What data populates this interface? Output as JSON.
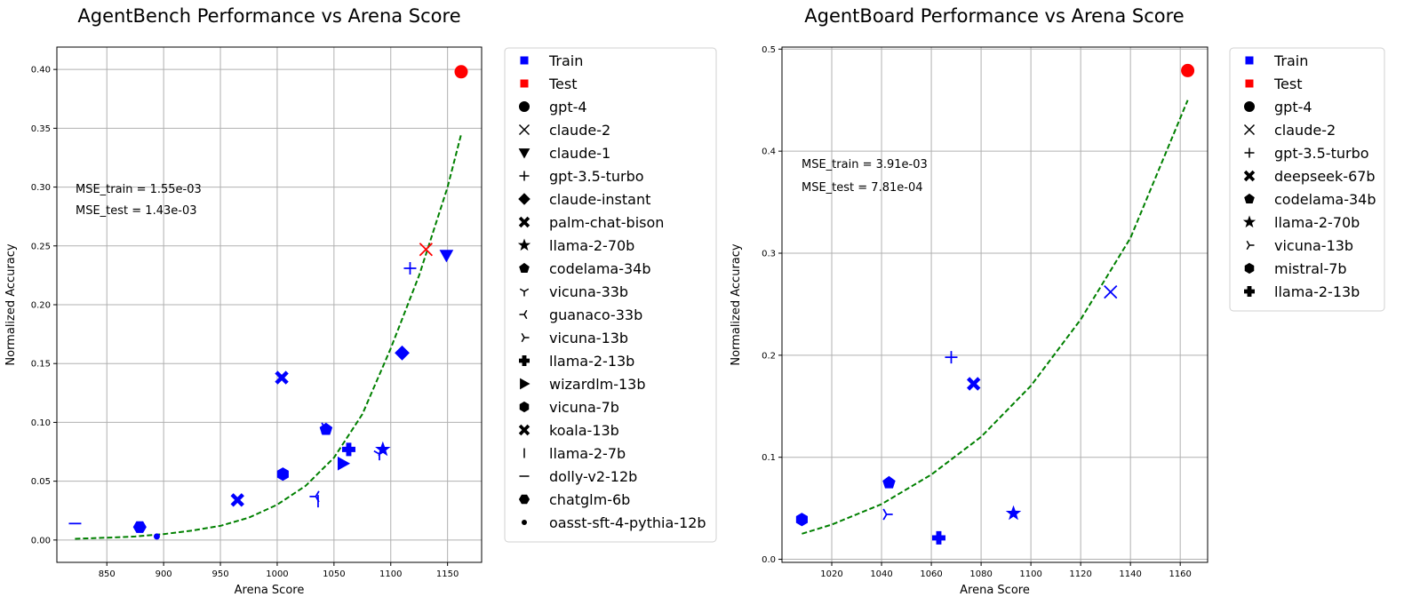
{
  "chart_data": [
    {
      "type": "scatter",
      "title": "AgentBench Performance vs Arena Score",
      "xlabel": "Arena Score",
      "ylabel": "Normalized Accuracy",
      "xlim": [
        806,
        1180
      ],
      "ylim": [
        -0.019,
        0.419
      ],
      "xticks": [
        "850",
        "900",
        "950",
        "1000",
        "1050",
        "1100",
        "1150"
      ],
      "yticks": [
        "0.00",
        "0.05",
        "0.10",
        "0.15",
        "0.20",
        "0.25",
        "0.30",
        "0.35",
        "0.40"
      ],
      "grid": true,
      "legend_position": "outside-right",
      "annotations": [
        "MSE_train = 1.55e-03",
        "MSE_test = 1.43e-03"
      ],
      "legend": [
        {
          "label": "Train",
          "marker": "square",
          "color": "#0000ff"
        },
        {
          "label": "Test",
          "marker": "square",
          "color": "#ff0000"
        },
        {
          "label": "gpt-4",
          "marker": "circle",
          "color": "#000000"
        },
        {
          "label": "claude-2",
          "marker": "x",
          "color": "#000000"
        },
        {
          "label": "claude-1",
          "marker": "triangle-down",
          "color": "#000000"
        },
        {
          "label": "gpt-3.5-turbo",
          "marker": "plus",
          "color": "#000000"
        },
        {
          "label": "claude-instant",
          "marker": "diamond",
          "color": "#000000"
        },
        {
          "label": "palm-chat-bison",
          "marker": "x-filled",
          "color": "#000000"
        },
        {
          "label": "llama-2-70b",
          "marker": "star",
          "color": "#000000"
        },
        {
          "label": "codelama-34b",
          "marker": "pentagon",
          "color": "#000000"
        },
        {
          "label": "vicuna-33b",
          "marker": "tri-down",
          "color": "#000000"
        },
        {
          "label": "guanaco-33b",
          "marker": "tri-left",
          "color": "#000000"
        },
        {
          "label": "vicuna-13b",
          "marker": "tri-right",
          "color": "#000000"
        },
        {
          "label": "llama-2-13b",
          "marker": "plus-filled",
          "color": "#000000"
        },
        {
          "label": "wizardlm-13b",
          "marker": "triangle-right",
          "color": "#000000"
        },
        {
          "label": "vicuna-7b",
          "marker": "hexagon",
          "color": "#000000"
        },
        {
          "label": "koala-13b",
          "marker": "x-filled",
          "color": "#000000"
        },
        {
          "label": "llama-2-7b",
          "marker": "vline",
          "color": "#000000"
        },
        {
          "label": "dolly-v2-12b",
          "marker": "hline",
          "color": "#000000"
        },
        {
          "label": "chatglm-6b",
          "marker": "hexagon2",
          "color": "#000000"
        },
        {
          "label": "oasst-sft-4-pythia-12b",
          "marker": "point",
          "color": "#000000"
        }
      ],
      "points": [
        {
          "model": "gpt-4",
          "x": 1162,
          "y": 0.398,
          "set": "Test",
          "marker": "circle"
        },
        {
          "model": "claude-2",
          "x": 1131,
          "y": 0.247,
          "set": "Test",
          "marker": "x"
        },
        {
          "model": "claude-1",
          "x": 1149,
          "y": 0.242,
          "set": "Train",
          "marker": "triangle-down"
        },
        {
          "model": "gpt-3.5-turbo",
          "x": 1117,
          "y": 0.231,
          "set": "Train",
          "marker": "plus"
        },
        {
          "model": "claude-instant",
          "x": 1110,
          "y": 0.159,
          "set": "Train",
          "marker": "diamond"
        },
        {
          "model": "palm-chat-bison",
          "x": 1004,
          "y": 0.138,
          "set": "Train",
          "marker": "x-filled"
        },
        {
          "model": "llama-2-70b",
          "x": 1093,
          "y": 0.077,
          "set": "Train",
          "marker": "star"
        },
        {
          "model": "codelama-34b",
          "x": 1043,
          "y": 0.094,
          "set": "Train",
          "marker": "pentagon"
        },
        {
          "model": "vicuna-33b",
          "x": 1090,
          "y": 0.073,
          "set": "Train",
          "marker": "tri-down"
        },
        {
          "model": "guanaco-33b",
          "x": 1034,
          "y": 0.037,
          "set": "Train",
          "marker": "tri-left"
        },
        {
          "model": "vicuna-13b",
          "x": 1042,
          "y": 0.095,
          "set": "Train",
          "marker": "tri-right"
        },
        {
          "model": "llama-2-13b",
          "x": 1063,
          "y": 0.077,
          "set": "Train",
          "marker": "plus-filled"
        },
        {
          "model": "wizardlm-13b",
          "x": 1058,
          "y": 0.065,
          "set": "Train",
          "marker": "triangle-right"
        },
        {
          "model": "vicuna-7b",
          "x": 1005,
          "y": 0.056,
          "set": "Train",
          "marker": "hexagon"
        },
        {
          "model": "koala-13b",
          "x": 965,
          "y": 0.034,
          "set": "Train",
          "marker": "x-filled"
        },
        {
          "model": "llama-2-7b",
          "x": 1036,
          "y": 0.033,
          "set": "Train",
          "marker": "vline"
        },
        {
          "model": "dolly-v2-12b",
          "x": 822,
          "y": 0.014,
          "set": "Train",
          "marker": "hline"
        },
        {
          "model": "chatglm-6b",
          "x": 879,
          "y": 0.011,
          "set": "Train",
          "marker": "hexagon2"
        },
        {
          "model": "oasst-sft-4-pythia-12b",
          "x": 894,
          "y": 0.003,
          "set": "Train",
          "marker": "point"
        }
      ],
      "fit": {
        "color": "#008000",
        "style": "dashed",
        "x": [
          822,
          850,
          875,
          900,
          925,
          950,
          975,
          1000,
          1025,
          1050,
          1075,
          1100,
          1125,
          1150,
          1162
        ],
        "y": [
          0.001,
          0.002,
          0.003,
          0.005,
          0.008,
          0.012,
          0.019,
          0.03,
          0.046,
          0.07,
          0.107,
          0.163,
          0.225,
          0.3,
          0.345
        ]
      }
    },
    {
      "type": "scatter",
      "title": "AgentBoard Performance vs Arena Score",
      "xlabel": "Arena Score",
      "ylabel": "Normalized Accuracy",
      "xlim": [
        1000,
        1171
      ],
      "ylim": [
        -0.003,
        0.502
      ],
      "xticks": [
        "1020",
        "1040",
        "1060",
        "1080",
        "1100",
        "1120",
        "1140",
        "1160"
      ],
      "yticks": [
        "0.0",
        "0.1",
        "0.2",
        "0.3",
        "0.4",
        "0.5"
      ],
      "grid": true,
      "legend_position": "outside-right",
      "annotations": [
        "MSE_train = 3.91e-03",
        "MSE_test = 7.81e-04"
      ],
      "legend": [
        {
          "label": "Train",
          "marker": "square",
          "color": "#0000ff"
        },
        {
          "label": "Test",
          "marker": "square",
          "color": "#ff0000"
        },
        {
          "label": "gpt-4",
          "marker": "circle",
          "color": "#000000"
        },
        {
          "label": "claude-2",
          "marker": "x",
          "color": "#000000"
        },
        {
          "label": "gpt-3.5-turbo",
          "marker": "plus",
          "color": "#000000"
        },
        {
          "label": "deepseek-67b",
          "marker": "x-filled",
          "color": "#000000"
        },
        {
          "label": "codelama-34b",
          "marker": "pentagon",
          "color": "#000000"
        },
        {
          "label": "llama-2-70b",
          "marker": "star",
          "color": "#000000"
        },
        {
          "label": "vicuna-13b",
          "marker": "tri-right",
          "color": "#000000"
        },
        {
          "label": "mistral-7b",
          "marker": "hexagon",
          "color": "#000000"
        },
        {
          "label": "llama-2-13b",
          "marker": "plus-filled",
          "color": "#000000"
        }
      ],
      "points": [
        {
          "model": "gpt-4",
          "x": 1163,
          "y": 0.479,
          "set": "Test",
          "marker": "circle"
        },
        {
          "model": "claude-2",
          "x": 1132,
          "y": 0.262,
          "set": "Train",
          "marker": "x"
        },
        {
          "model": "gpt-3.5-turbo",
          "x": 1068,
          "y": 0.198,
          "set": "Train",
          "marker": "plus"
        },
        {
          "model": "deepseek-67b",
          "x": 1077,
          "y": 0.172,
          "set": "Train",
          "marker": "x-filled"
        },
        {
          "model": "codelama-34b",
          "x": 1043,
          "y": 0.075,
          "set": "Train",
          "marker": "pentagon"
        },
        {
          "model": "llama-2-70b",
          "x": 1093,
          "y": 0.045,
          "set": "Train",
          "marker": "star"
        },
        {
          "model": "vicuna-13b",
          "x": 1042,
          "y": 0.044,
          "set": "Train",
          "marker": "tri-right"
        },
        {
          "model": "mistral-7b",
          "x": 1008,
          "y": 0.039,
          "set": "Train",
          "marker": "hexagon"
        },
        {
          "model": "llama-2-13b",
          "x": 1063,
          "y": 0.021,
          "set": "Train",
          "marker": "plus-filled"
        }
      ],
      "fit": {
        "color": "#008000",
        "style": "dashed",
        "x": [
          1008,
          1020,
          1040,
          1060,
          1080,
          1100,
          1120,
          1140,
          1163
        ],
        "y": [
          0.025,
          0.034,
          0.054,
          0.083,
          0.12,
          0.17,
          0.235,
          0.315,
          0.45
        ]
      }
    }
  ]
}
